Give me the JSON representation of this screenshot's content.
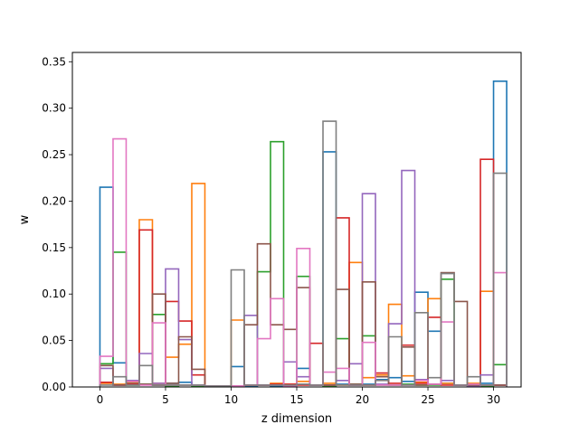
{
  "chart_data": {
    "type": "step-histogram",
    "title": "",
    "xlabel": "z dimension",
    "ylabel": "w",
    "xlim": [
      -2.1,
      32.1
    ],
    "ylim": [
      0,
      0.36
    ],
    "xticks": [
      0,
      5,
      10,
      15,
      20,
      25,
      30
    ],
    "xtick_labels": [
      "0",
      "5",
      "10",
      "15",
      "20",
      "25",
      "30"
    ],
    "yticks": [
      0.0,
      0.05,
      0.1,
      0.15,
      0.2,
      0.25,
      0.3,
      0.35
    ],
    "ytick_labels": [
      "0.00",
      "0.05",
      "0.10",
      "0.15",
      "0.20",
      "0.25",
      "0.30",
      "0.35"
    ],
    "bins": [
      0,
      1,
      2,
      3,
      4,
      5,
      6,
      7,
      8,
      9,
      10,
      11,
      12,
      13,
      14,
      15,
      16,
      17,
      18,
      19,
      20,
      21,
      22,
      23,
      24,
      25,
      26,
      27,
      28,
      29,
      30,
      31
    ],
    "series": [
      {
        "color": "#1f77b4",
        "values": [
          0.215,
          0.026,
          0.004,
          0.003,
          0.002,
          0.004,
          0.005,
          0.002,
          0.001,
          0.001,
          0.022,
          0.001,
          0.002,
          0.001,
          0.002,
          0.02,
          0.002,
          0.253,
          0.003,
          0.002,
          0.003,
          0.008,
          0.01,
          0.006,
          0.102,
          0.06,
          0.004,
          0.002,
          0.002,
          0.004,
          0.329
        ]
      },
      {
        "color": "#ff7f0e",
        "values": [
          0.004,
          0.003,
          0.005,
          0.18,
          0.004,
          0.032,
          0.046,
          0.219,
          0.001,
          0.001,
          0.072,
          0.002,
          0.002,
          0.004,
          0.003,
          0.006,
          0.002,
          0.004,
          0.002,
          0.134,
          0.01,
          0.013,
          0.089,
          0.012,
          0.005,
          0.095,
          0.004,
          0.002,
          0.004,
          0.103,
          0.002
        ]
      },
      {
        "color": "#2ca02c",
        "values": [
          0.025,
          0.145,
          0.002,
          0.003,
          0.078,
          0.001,
          0.002,
          0.001,
          0.001,
          0.001,
          0.001,
          0.002,
          0.124,
          0.264,
          0.002,
          0.119,
          0.002,
          0.001,
          0.052,
          0.003,
          0.055,
          0.002,
          0.002,
          0.003,
          0.002,
          0.002,
          0.116,
          0.002,
          0.001,
          0.001,
          0.024
        ]
      },
      {
        "color": "#d62728",
        "values": [
          0.005,
          0.002,
          0.003,
          0.169,
          0.002,
          0.092,
          0.071,
          0.013,
          0.001,
          0.001,
          0.001,
          0.002,
          0.002,
          0.003,
          0.003,
          0.002,
          0.047,
          0.002,
          0.182,
          0.002,
          0.002,
          0.015,
          0.004,
          0.045,
          0.004,
          0.075,
          0.002,
          0.002,
          0.002,
          0.245,
          0.002
        ]
      },
      {
        "color": "#9467bd",
        "values": [
          0.02,
          0.002,
          0.007,
          0.036,
          0.004,
          0.127,
          0.051,
          0.002,
          0.001,
          0.001,
          0.001,
          0.077,
          0.002,
          0.002,
          0.027,
          0.011,
          0.002,
          0.002,
          0.007,
          0.025,
          0.208,
          0.003,
          0.068,
          0.233,
          0.008,
          0.003,
          0.007,
          0.002,
          0.001,
          0.013,
          0.002
        ]
      },
      {
        "color": "#8c564b",
        "values": [
          0.023,
          0.002,
          0.006,
          0.003,
          0.1,
          0.004,
          0.054,
          0.019,
          0.001,
          0.001,
          0.001,
          0.067,
          0.154,
          0.067,
          0.062,
          0.107,
          0.002,
          0.002,
          0.105,
          0.003,
          0.113,
          0.011,
          0.002,
          0.043,
          0.002,
          0.003,
          0.123,
          0.092,
          0.002,
          0.002,
          0.002
        ]
      },
      {
        "color": "#e377c2",
        "values": [
          0.033,
          0.267,
          0.006,
          0.002,
          0.069,
          0.002,
          0.002,
          0.002,
          0.001,
          0.001,
          0.001,
          0.002,
          0.052,
          0.095,
          0.001,
          0.149,
          0.002,
          0.016,
          0.02,
          0.002,
          0.048,
          0.002,
          0.002,
          0.002,
          0.007,
          0.003,
          0.07,
          0.002,
          0.003,
          0.002,
          0.123
        ]
      },
      {
        "color": "#7f7f7f",
        "values": [
          0.002,
          0.011,
          0.002,
          0.023,
          0.002,
          0.002,
          0.002,
          0.002,
          0.001,
          0.001,
          0.126,
          0.002,
          0.002,
          0.002,
          0.002,
          0.003,
          0.002,
          0.286,
          0.002,
          0.002,
          0.002,
          0.007,
          0.054,
          0.002,
          0.08,
          0.01,
          0.122,
          0.002,
          0.011,
          0.002,
          0.23
        ]
      }
    ]
  }
}
